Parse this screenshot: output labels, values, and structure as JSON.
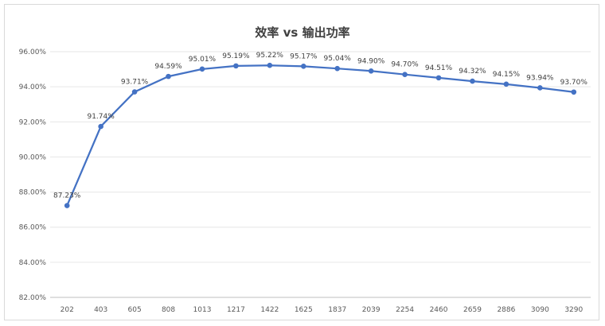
{
  "chart_data": {
    "type": "line",
    "title": "效率 vs 输出功率",
    "xlabel": "",
    "ylabel": "",
    "categories": [
      "202",
      "403",
      "605",
      "808",
      "1013",
      "1217",
      "1422",
      "1625",
      "1837",
      "2039",
      "2254",
      "2460",
      "2659",
      "2886",
      "3090",
      "3290"
    ],
    "series": [
      {
        "color": "#4472c4",
        "values": [
          87.23,
          91.74,
          93.71,
          94.59,
          95.01,
          95.19,
          95.22,
          95.17,
          95.04,
          94.9,
          94.7,
          94.51,
          94.32,
          94.15,
          93.94,
          93.7
        ],
        "data_labels": [
          "87.23%",
          "91.74%",
          "93.71%",
          "94.59%",
          "95.01%",
          "95.19%",
          "95.22%",
          "95.17%",
          "95.04%",
          "94.90%",
          "94.70%",
          "94.51%",
          "94.32%",
          "94.15%",
          "93.94%",
          "93.70%"
        ]
      }
    ],
    "ylim": [
      82,
      96
    ],
    "ytick_labels": [
      "82.00%",
      "84.00%",
      "86.00%",
      "88.00%",
      "90.00%",
      "92.00%",
      "94.00%",
      "96.00%"
    ],
    "grid": true,
    "legend": "none"
  }
}
